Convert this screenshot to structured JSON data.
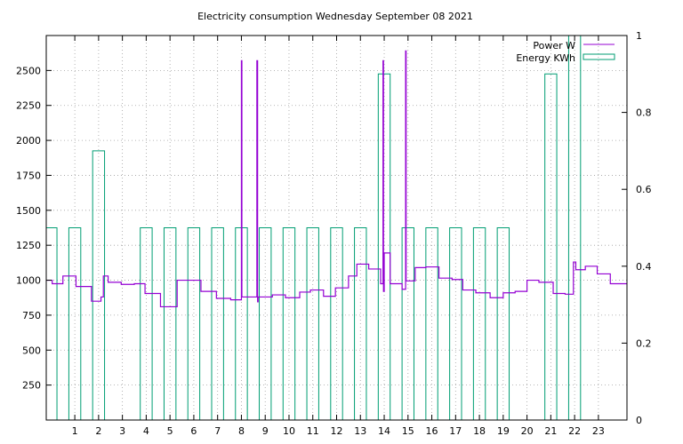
{
  "chart_data": {
    "type": "line",
    "title": "Electricity consumption Wednesday September 08 2021",
    "xlabel": "",
    "ylabel": "",
    "xlim": [
      -0.2,
      24.2
    ],
    "ylim": [
      0,
      2750
    ],
    "y2lim": [
      0,
      1
    ],
    "x_ticks": [
      1,
      2,
      3,
      4,
      5,
      6,
      7,
      8,
      9,
      10,
      11,
      12,
      13,
      14,
      15,
      16,
      17,
      18,
      19,
      20,
      21,
      22,
      23
    ],
    "y_ticks": [
      250,
      500,
      750,
      1000,
      1250,
      1500,
      1750,
      2000,
      2250,
      2500
    ],
    "y2_ticks": [
      0,
      0.2,
      0.4,
      0.6,
      0.8,
      1
    ],
    "grid": true,
    "legend_position": "top-right",
    "series": [
      {
        "name": "Power W",
        "axis": "y1",
        "style": "steps",
        "color": "#9400d3",
        "points": [
          [
            -0.2,
            1000
          ],
          [
            0.05,
            975
          ],
          [
            0.5,
            1030
          ],
          [
            1.05,
            955
          ],
          [
            1.7,
            850
          ],
          [
            2.1,
            880
          ],
          [
            2.2,
            1030
          ],
          [
            2.4,
            985
          ],
          [
            2.95,
            970
          ],
          [
            3.5,
            975
          ],
          [
            3.95,
            905
          ],
          [
            4.6,
            810
          ],
          [
            5.3,
            1000
          ],
          [
            6.3,
            920
          ],
          [
            6.95,
            870
          ],
          [
            7.55,
            860
          ],
          [
            8.0,
            2570
          ],
          [
            8.02,
            880
          ],
          [
            8.65,
            2570
          ],
          [
            8.68,
            845
          ],
          [
            8.7,
            880
          ],
          [
            9.3,
            895
          ],
          [
            9.85,
            875
          ],
          [
            10.45,
            915
          ],
          [
            10.9,
            930
          ],
          [
            11.45,
            885
          ],
          [
            11.95,
            945
          ],
          [
            12.5,
            1030
          ],
          [
            12.85,
            1115
          ],
          [
            13.35,
            1080
          ],
          [
            13.85,
            975
          ],
          [
            13.95,
            2570
          ],
          [
            13.97,
            920
          ],
          [
            14.0,
            1195
          ],
          [
            14.25,
            975
          ],
          [
            14.75,
            935
          ],
          [
            14.9,
            2640
          ],
          [
            14.92,
            995
          ],
          [
            15.3,
            1090
          ],
          [
            15.75,
            1095
          ],
          [
            16.3,
            1015
          ],
          [
            16.85,
            1005
          ],
          [
            17.3,
            930
          ],
          [
            17.85,
            910
          ],
          [
            18.45,
            875
          ],
          [
            19.0,
            910
          ],
          [
            19.5,
            920
          ],
          [
            20.0,
            1000
          ],
          [
            20.5,
            985
          ],
          [
            21.1,
            905
          ],
          [
            21.6,
            900
          ],
          [
            21.95,
            1130
          ],
          [
            22.05,
            1075
          ],
          [
            22.45,
            1100
          ],
          [
            22.95,
            1045
          ],
          [
            23.5,
            975
          ],
          [
            24.2,
            975
          ]
        ]
      },
      {
        "name": "Energy KWh",
        "axis": "y2",
        "style": "boxes",
        "color": "#009e73",
        "boxes": [
          {
            "x": 0,
            "value": 0.5
          },
          {
            "x": 1,
            "value": 0.5
          },
          {
            "x": 2,
            "value": 0.7
          },
          {
            "x": 4,
            "value": 0.5
          },
          {
            "x": 5,
            "value": 0.5
          },
          {
            "x": 6,
            "value": 0.5
          },
          {
            "x": 7,
            "value": 0.5
          },
          {
            "x": 8,
            "value": 0.5
          },
          {
            "x": 9,
            "value": 0.5
          },
          {
            "x": 10,
            "value": 0.5
          },
          {
            "x": 11,
            "value": 0.5
          },
          {
            "x": 12,
            "value": 0.5
          },
          {
            "x": 13,
            "value": 0.5
          },
          {
            "x": 14,
            "value": 0.9
          },
          {
            "x": 15,
            "value": 0.5
          },
          {
            "x": 16,
            "value": 0.5
          },
          {
            "x": 17,
            "value": 0.5
          },
          {
            "x": 18,
            "value": 0.5
          },
          {
            "x": 19,
            "value": 0.5
          },
          {
            "x": 21,
            "value": 0.9
          },
          {
            "x": 22,
            "value": 1.0
          }
        ]
      }
    ]
  }
}
